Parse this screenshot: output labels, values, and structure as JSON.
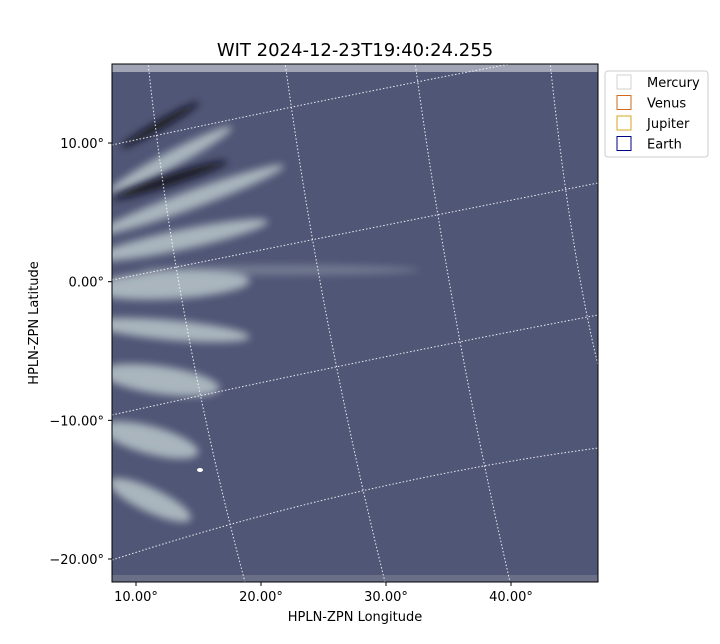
{
  "chart_data": {
    "type": "image",
    "title": "WIT 2024-12-23T19:40:24.255",
    "x_label": "HPLN-ZPN Longitude",
    "y_label": "HPLN-ZPN Latitude",
    "xlim": [
      8.08,
      46.96
    ],
    "ylim": [
      -21.66,
      15.7
    ],
    "xticks": [
      {
        "value": 10,
        "label": "10.00°"
      },
      {
        "value": 20,
        "label": "20.00°"
      },
      {
        "value": 30,
        "label": "30.00°"
      },
      {
        "value": 40,
        "label": "40.00°"
      }
    ],
    "yticks": [
      {
        "value": 10,
        "label": "10.00°"
      },
      {
        "value": 0,
        "label": "0.00°"
      },
      {
        "value": -10,
        "label": "−10.00°"
      },
      {
        "value": -20,
        "label": "−20.00°"
      }
    ],
    "legend": "upper right outside",
    "series": [
      {
        "name": "Mercury",
        "color": "#d0d0d0"
      },
      {
        "name": "Venus",
        "color": "#d2691e"
      },
      {
        "name": "Jupiter",
        "color": "#daa520"
      },
      {
        "name": "Earth",
        "color": "#000080"
      }
    ]
  }
}
